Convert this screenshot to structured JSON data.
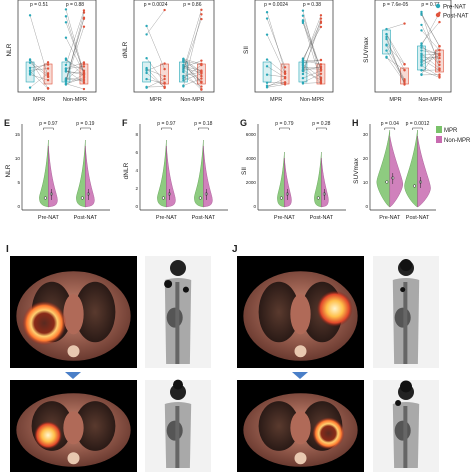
{
  "row1": {
    "panels": [
      {
        "ylabel": "NLR",
        "categories": [
          "MPR",
          "Non-MPR"
        ],
        "p": [
          "p = 0.51",
          "p = 0.88"
        ]
      },
      {
        "ylabel": "dNLR",
        "categories": [
          "MPR",
          "Non-MPR"
        ],
        "p": [
          "p = 0.0024",
          "p = 0.86"
        ]
      },
      {
        "ylabel": "SII",
        "categories": [
          "MPR",
          "Non-MPR"
        ],
        "p": [
          "p = 0.0024",
          "p = 0.38"
        ]
      },
      {
        "ylabel": "SUVmax",
        "categories": [
          "MPR",
          "Non-MPR"
        ],
        "p": [
          "p = 7.6e-05",
          "p = 0.77"
        ]
      }
    ],
    "legend": [
      {
        "label": "Pre-NAT",
        "color": "#2aa8b8"
      },
      {
        "label": "Post-NAT",
        "color": "#e0533c"
      }
    ]
  },
  "row2": {
    "panels": [
      {
        "letter": "E",
        "ylabel": "NLR",
        "categories": [
          "Pre-NAT",
          "Post-NAT"
        ],
        "p": [
          "p = 0.97",
          "p = 0.19"
        ],
        "yticks": [
          "0",
          "5",
          "10",
          "15"
        ]
      },
      {
        "letter": "F",
        "ylabel": "dNLR",
        "categories": [
          "Pre-NAT",
          "Post-NAT"
        ],
        "p": [
          "p = 0.97",
          "p = 0.18"
        ],
        "yticks": [
          "0",
          "2",
          "4",
          "6",
          "8"
        ]
      },
      {
        "letter": "G",
        "ylabel": "SII",
        "categories": [
          "Pre-NAT",
          "Post-NAT"
        ],
        "p": [
          "p = 0.79",
          "p = 0.28"
        ],
        "yticks": [
          "0",
          "2000",
          "4000",
          "6000"
        ]
      },
      {
        "letter": "H",
        "ylabel": "SUVmax",
        "categories": [
          "Pre-NAT",
          "Post-NAT"
        ],
        "p": [
          "p = 0.04",
          "p = 0.0012"
        ],
        "yticks": [
          "0",
          "10",
          "20",
          "30"
        ]
      }
    ],
    "legend": [
      {
        "label": "MPR",
        "color": "#7ac26a"
      },
      {
        "label": "Non-MPR",
        "color": "#c86bb0"
      }
    ]
  },
  "images": {
    "letters": [
      "I",
      "J"
    ]
  }
}
